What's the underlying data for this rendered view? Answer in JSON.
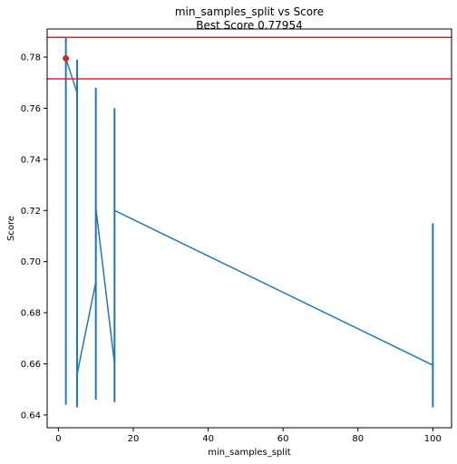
{
  "chart_data": {
    "type": "line",
    "title": "min_samples_split vs Score",
    "subtitle": "Best Score 0.77954",
    "xlabel": "min_samples_split",
    "ylabel": "Score",
    "xlim": [
      -3,
      105
    ],
    "ylim": [
      0.635,
      0.791
    ],
    "xticks": [
      0,
      20,
      40,
      60,
      80,
      100
    ],
    "yticks": [
      0.64,
      0.66,
      0.68,
      0.7,
      0.72,
      0.74,
      0.76,
      0.78
    ],
    "ytick_labels": [
      "0.64",
      "0.66",
      "0.68",
      "0.70",
      "0.72",
      "0.74",
      "0.76",
      "0.78"
    ],
    "grid": false,
    "series": [
      {
        "color": "#1f77b4",
        "x": [
          2,
          5,
          5,
          10,
          10,
          15,
          15,
          100
        ],
        "y": [
          0.7795,
          0.766,
          0.656,
          0.692,
          0.721,
          0.66,
          0.72,
          0.6595
        ]
      }
    ],
    "error_bars": [
      {
        "x": 2,
        "low": 0.644,
        "high": 0.788
      },
      {
        "x": 5,
        "low": 0.643,
        "high": 0.779
      },
      {
        "x": 10,
        "low": 0.646,
        "high": 0.768
      },
      {
        "x": 15,
        "low": 0.645,
        "high": 0.76
      },
      {
        "x": 100,
        "low": 0.643,
        "high": 0.715
      }
    ],
    "hlines": [
      {
        "y": 0.7877,
        "color": "#d62728"
      },
      {
        "y": 0.7715,
        "color": "#d62728"
      }
    ],
    "best_point": {
      "x": 2,
      "y": 0.7795,
      "color": "#d62728"
    }
  }
}
